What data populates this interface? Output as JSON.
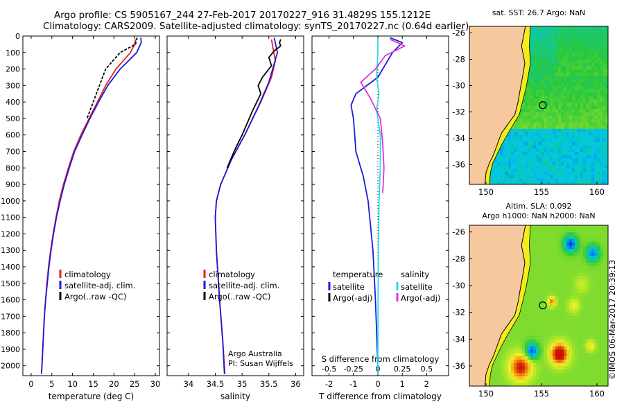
{
  "header": {
    "line1": "Argo profile: CS 5905167_244 27-Feb-2017 20170227_916 31.4829S 155.1212E",
    "line2": "Climatology: CARS2009. Satellite-adjusted climatology: synTS_20170227.nc (0.64d earlier)"
  },
  "credit": "©IMOS 06-Mar-2017 20:39:13",
  "colors": {
    "climatology": "#e8221b",
    "satellite": "#1a1adc",
    "argo": "#000000",
    "sal_satellite": "#22e0e8",
    "sal_argo": "#e030e0",
    "land": "#f7c79e",
    "coast_shelf": "#f2ec1c"
  },
  "chart_data": [
    {
      "type": "line",
      "xlabel": "temperature (deg C)",
      "ylabel": "",
      "xlim": [
        -2,
        31
      ],
      "ylim": [
        2060,
        0
      ],
      "x_ticks": [
        0,
        5,
        10,
        15,
        20,
        25,
        30
      ],
      "y_ticks": [
        0,
        100,
        200,
        300,
        400,
        500,
        600,
        700,
        800,
        900,
        1000,
        1100,
        1200,
        1300,
        1400,
        1500,
        1600,
        1700,
        1800,
        1900,
        2000
      ],
      "legend": [
        "climatology",
        "satellite-adj. clim.",
        "Argo(..raw -QC)"
      ],
      "legend_position": "lower-left",
      "series": [
        {
          "name": "climatology",
          "points": [
            [
              25.2,
              20
            ],
            [
              25.0,
              50
            ],
            [
              24.0,
              100
            ],
            [
              20.5,
              200
            ],
            [
              18.0,
              300
            ],
            [
              16.0,
              400
            ],
            [
              14.0,
              500
            ],
            [
              12.0,
              600
            ],
            [
              10.3,
              700
            ],
            [
              9.0,
              800
            ],
            [
              7.8,
              900
            ],
            [
              6.8,
              1000
            ],
            [
              6.0,
              1100
            ],
            [
              5.3,
              1200
            ],
            [
              4.7,
              1300
            ],
            [
              4.2,
              1400
            ],
            [
              3.8,
              1500
            ],
            [
              3.5,
              1600
            ],
            [
              3.2,
              1700
            ],
            [
              3.0,
              1800
            ],
            [
              2.8,
              1900
            ],
            [
              2.6,
              2000
            ],
            [
              2.5,
              2050
            ]
          ]
        },
        {
          "name": "satellite-adj. clim.",
          "points": [
            [
              26.5,
              10
            ],
            [
              26.6,
              40
            ],
            [
              25.5,
              100
            ],
            [
              21.5,
              200
            ],
            [
              18.5,
              300
            ],
            [
              16.3,
              400
            ],
            [
              14.2,
              500
            ],
            [
              12.3,
              600
            ],
            [
              10.5,
              700
            ],
            [
              9.2,
              800
            ],
            [
              8.0,
              900
            ],
            [
              7.0,
              1000
            ],
            [
              6.1,
              1100
            ],
            [
              5.4,
              1200
            ],
            [
              4.8,
              1300
            ],
            [
              4.3,
              1400
            ],
            [
              3.9,
              1500
            ],
            [
              3.5,
              1600
            ],
            [
              3.2,
              1700
            ],
            [
              3.0,
              1800
            ],
            [
              2.8,
              1900
            ],
            [
              2.6,
              2000
            ],
            [
              2.5,
              2050
            ]
          ]
        },
        {
          "name": "Argo(..raw -QC)",
          "points": [
            [
              25.6,
              10
            ],
            [
              25.2,
              50
            ],
            [
              21.5,
              100
            ],
            [
              18.0,
              200
            ],
            [
              16.5,
              300
            ],
            [
              15.0,
              400
            ],
            [
              13.5,
              500
            ]
          ]
        }
      ]
    },
    {
      "type": "line",
      "xlabel": "salinity",
      "ylabel": "",
      "xlim": [
        33.6,
        36.15
      ],
      "ylim": [
        2060,
        0
      ],
      "x_ticks": [
        34,
        34.5,
        35,
        35.5,
        36
      ],
      "legend": [
        "climatology",
        "satellite-adj. clim.",
        "Argo(..raw -QC)"
      ],
      "legend_position": "lower-left",
      "annotations": [
        "Argo Australia",
        "PI: Susan Wijffels"
      ],
      "series": [
        {
          "name": "climatology",
          "points": [
            [
              35.55,
              20
            ],
            [
              35.58,
              80
            ],
            [
              35.62,
              150
            ],
            [
              35.55,
              250
            ],
            [
              35.35,
              400
            ],
            [
              35.05,
              600
            ],
            [
              34.8,
              750
            ],
            [
              34.6,
              900
            ],
            [
              34.52,
              1000
            ],
            [
              34.5,
              1100
            ],
            [
              34.52,
              1300
            ],
            [
              34.58,
              1600
            ],
            [
              34.64,
              1850
            ],
            [
              34.68,
              2050
            ]
          ]
        },
        {
          "name": "satellite-adj. clim.",
          "points": [
            [
              35.6,
              10
            ],
            [
              35.66,
              100
            ],
            [
              35.5,
              280
            ],
            [
              35.3,
              430
            ],
            [
              35.05,
              600
            ],
            [
              34.8,
              750
            ],
            [
              34.6,
              900
            ],
            [
              34.52,
              1000
            ],
            [
              34.5,
              1100
            ],
            [
              34.52,
              1300
            ],
            [
              34.58,
              1600
            ],
            [
              34.64,
              1850
            ],
            [
              34.67,
              2050
            ]
          ]
        },
        {
          "name": "Argo(..raw -QC)",
          "points": [
            [
              35.72,
              20
            ],
            [
              35.7,
              40
            ],
            [
              35.72,
              60
            ],
            [
              35.6,
              90
            ],
            [
              35.5,
              130
            ],
            [
              35.55,
              180
            ],
            [
              35.38,
              250
            ],
            [
              35.3,
              300
            ],
            [
              35.35,
              350
            ],
            [
              35.2,
              450
            ],
            [
              35.0,
              600
            ],
            [
              34.85,
              700
            ],
            [
              34.72,
              800
            ]
          ]
        }
      ]
    },
    {
      "type": "line",
      "xlabel": "T difference from climatology",
      "x2label": "S difference from climatology",
      "ylabel": "",
      "xlim": [
        -2.7,
        2.9
      ],
      "ylim": [
        2060,
        0
      ],
      "x_ticks": [
        -2,
        -1,
        0,
        1,
        2
      ],
      "x2_ticks": [
        -0.5,
        -0.25,
        0,
        0.25,
        0.5
      ],
      "legend_groups": [
        {
          "title": "temperature",
          "items": [
            "satellite",
            "Argo(-adj)"
          ]
        },
        {
          "title": "salinity",
          "items": [
            "satellite",
            "Argo(-adj)"
          ]
        }
      ],
      "legend_position": "lower-center",
      "series": [
        {
          "name": "temperature satellite",
          "points": [
            [
              0.5,
              10
            ],
            [
              1.0,
              40
            ],
            [
              0.6,
              100
            ],
            [
              0.0,
              250
            ],
            [
              -0.9,
              350
            ],
            [
              -1.1,
              420
            ],
            [
              -1.0,
              500
            ],
            [
              -0.9,
              700
            ],
            [
              -0.6,
              850
            ],
            [
              -0.4,
              1000
            ],
            [
              -0.2,
              1300
            ],
            [
              -0.1,
              1600
            ],
            [
              0.0,
              2000
            ],
            [
              0.0,
              2050
            ]
          ]
        },
        {
          "name": "salinity satellite",
          "points": [
            [
              0.0,
              10
            ],
            [
              0.0,
              100
            ],
            [
              -0.05,
              250
            ],
            [
              0.05,
              350
            ],
            [
              -0.05,
              450
            ],
            [
              0.1,
              600
            ],
            [
              0.1,
              800
            ],
            [
              0.05,
              1000
            ],
            [
              0.02,
              1300
            ],
            [
              0.01,
              1600
            ],
            [
              0.0,
              2050
            ]
          ]
        },
        {
          "name": "salinity Argo(-adj)",
          "points": [
            [
              0.5,
              20
            ],
            [
              1.1,
              60
            ],
            [
              0.3,
              120
            ],
            [
              -0.1,
              200
            ],
            [
              -0.7,
              280
            ],
            [
              -0.3,
              380
            ],
            [
              0.1,
              500
            ],
            [
              0.2,
              650
            ],
            [
              0.25,
              800
            ],
            [
              0.2,
              950
            ]
          ]
        }
      ]
    },
    {
      "type": "heatmap",
      "title": "sat. SST: 26.7 Argo: NaN",
      "xlim": [
        148.5,
        161
      ],
      "ylim": [
        -37.5,
        -25.5
      ],
      "x_ticks": [
        150,
        155,
        160
      ],
      "y_ticks": [
        -26,
        -28,
        -30,
        -32,
        -34,
        -36
      ],
      "marker": {
        "lon": 155.12,
        "lat": -31.48
      }
    },
    {
      "type": "heatmap",
      "title": "Altim. SLA: 0.092",
      "subtitle": "Argo h1000: NaN h2000: NaN",
      "xlim": [
        148.5,
        161
      ],
      "ylim": [
        -37.5,
        -25.5
      ],
      "x_ticks": [
        150,
        155,
        160
      ],
      "y_ticks": [
        -26,
        -28,
        -30,
        -32,
        -34,
        -36
      ],
      "marker": {
        "lon": 155.12,
        "lat": -31.48
      }
    }
  ]
}
